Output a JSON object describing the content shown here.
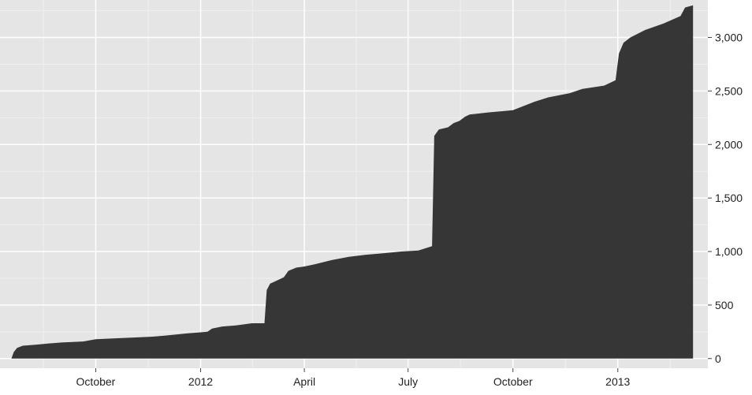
{
  "colors": {
    "panel_background": "#e5e5e5",
    "grid_major": "#ffffff",
    "grid_minor": "#f0f0f0",
    "area_fill": "#363636",
    "tick_color": "#444444"
  },
  "chart_data": {
    "type": "area",
    "title": "",
    "xlabel": "",
    "ylabel": "",
    "y_axis_position": "right",
    "grid": true,
    "legend": "none",
    "xlim": [
      "2011-07-09",
      "2013-03-21"
    ],
    "ylim": [
      -90,
      3350
    ],
    "x_ticks": [
      {
        "date": "2011-10-01",
        "label": "October"
      },
      {
        "date": "2012-01-01",
        "label": "2012"
      },
      {
        "date": "2012-04-01",
        "label": "April"
      },
      {
        "date": "2012-07-01",
        "label": "July"
      },
      {
        "date": "2012-10-01",
        "label": "October"
      },
      {
        "date": "2013-01-01",
        "label": "2013"
      }
    ],
    "y_ticks": [
      {
        "value": 0,
        "label": "0"
      },
      {
        "value": 500,
        "label": "500"
      },
      {
        "value": 1000,
        "label": "1,000"
      },
      {
        "value": 1500,
        "label": "1,500"
      },
      {
        "value": 2000,
        "label": "2,000"
      },
      {
        "value": 2500,
        "label": "2,500"
      },
      {
        "value": 3000,
        "label": "3,000"
      }
    ],
    "series": [
      {
        "x": [
          "2011-07-19",
          "2011-07-21",
          "2011-07-24",
          "2011-07-29",
          "2011-08-10",
          "2011-08-20",
          "2011-09-01",
          "2011-09-20",
          "2011-10-01",
          "2011-10-20",
          "2011-11-01",
          "2011-11-20",
          "2011-12-01",
          "2011-12-20",
          "2012-01-01",
          "2012-01-07",
          "2012-01-11",
          "2012-01-20",
          "2012-02-01",
          "2012-02-15",
          "2012-02-26",
          "2012-02-28",
          "2012-03-02",
          "2012-03-08",
          "2012-03-14",
          "2012-03-18",
          "2012-03-25",
          "2012-04-01",
          "2012-04-10",
          "2012-04-25",
          "2012-05-10",
          "2012-05-25",
          "2012-06-10",
          "2012-06-25",
          "2012-07-10",
          "2012-07-22",
          "2012-07-24",
          "2012-07-28",
          "2012-08-05",
          "2012-08-10",
          "2012-08-15",
          "2012-08-20",
          "2012-08-24",
          "2012-09-10",
          "2012-10-01",
          "2012-10-20",
          "2012-11-01",
          "2012-11-20",
          "2012-12-01",
          "2012-12-20",
          "2012-12-30",
          "2013-01-02",
          "2013-01-06",
          "2013-01-12",
          "2013-01-25",
          "2013-02-10",
          "2013-02-25",
          "2013-03-01",
          "2013-03-08"
        ],
        "y": [
          0,
          60,
          100,
          120,
          130,
          140,
          150,
          160,
          180,
          190,
          195,
          205,
          215,
          235,
          245,
          250,
          280,
          300,
          310,
          330,
          330,
          640,
          700,
          730,
          760,
          820,
          850,
          860,
          880,
          920,
          950,
          970,
          985,
          1000,
          1010,
          1050,
          2080,
          2140,
          2160,
          2200,
          2220,
          2260,
          2280,
          2300,
          2320,
          2400,
          2440,
          2480,
          2520,
          2550,
          2600,
          2850,
          2950,
          3000,
          3070,
          3130,
          3200,
          3280,
          3300
        ]
      }
    ]
  }
}
